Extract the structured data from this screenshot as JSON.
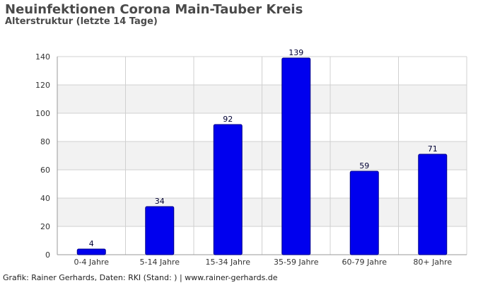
{
  "header": {
    "title": "Neuinfektionen Corona Main-Tauber Kreis",
    "subtitle": "Alterstruktur (letzte 14 Tage)"
  },
  "footer": {
    "text": "Grafik: Rainer Gerhards, Daten: RKI (Stand: ) | www.rainer-gerhards.de"
  },
  "colors": {
    "bar": "#0000ee",
    "bar_stroke": "#00008b",
    "band": "#f2f2f2",
    "grid": "#d0d0d0"
  },
  "chart_data": {
    "type": "bar",
    "title": "Neuinfektionen Corona Main-Tauber Kreis",
    "subtitle": "Alterstruktur (letzte 14 Tage)",
    "categories": [
      "0-4 Jahre",
      "5-14 Jahre",
      "15-34 Jahre",
      "35-59 Jahre",
      "60-79 Jahre",
      "80+ Jahre"
    ],
    "values": [
      4,
      34,
      92,
      139,
      59,
      71
    ],
    "yticks": [
      0,
      20,
      40,
      60,
      80,
      100,
      120,
      140
    ],
    "ylim": [
      0,
      140
    ],
    "xlabel": "",
    "ylabel": "",
    "grid": true,
    "data_labels": true
  }
}
